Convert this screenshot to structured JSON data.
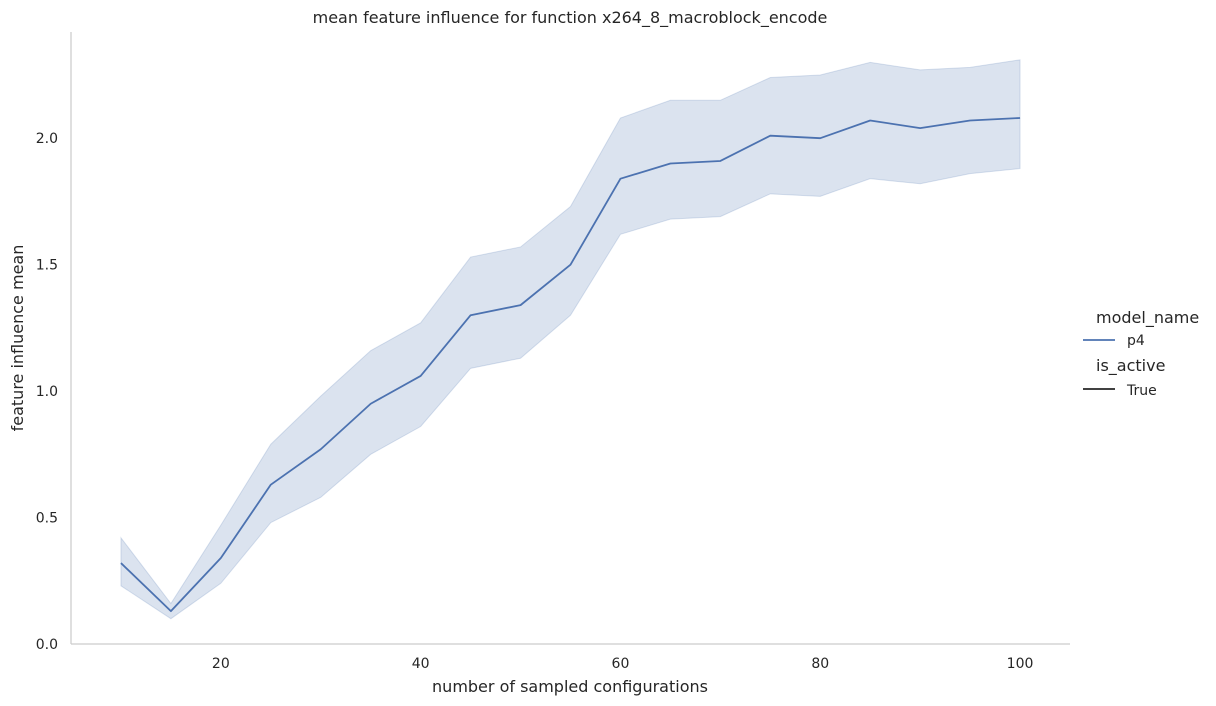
{
  "chart_data": {
    "type": "line",
    "title": "mean feature influence for function x264_8_macroblock_encode",
    "xlabel": "number of sampled configurations",
    "ylabel": "feature influence mean",
    "xlim": [
      5,
      105
    ],
    "ylim": [
      0,
      2.42
    ],
    "x_ticks": [
      20,
      40,
      60,
      80,
      100
    ],
    "y_ticks": [
      0.0,
      0.5,
      1.0,
      1.5,
      2.0
    ],
    "x_tick_labels": [
      "20",
      "40",
      "60",
      "80",
      "100"
    ],
    "y_tick_labels": [
      "0.0",
      "0.5",
      "1.0",
      "1.5",
      "2.0"
    ],
    "x": [
      10,
      15,
      20,
      25,
      30,
      35,
      40,
      45,
      50,
      55,
      60,
      65,
      70,
      75,
      80,
      85,
      90,
      95,
      100
    ],
    "series": [
      {
        "name": "p4",
        "color": "#4c72b0",
        "band_color": "#4c72b0",
        "values": [
          0.32,
          0.13,
          0.34,
          0.63,
          0.77,
          0.95,
          1.06,
          1.3,
          1.34,
          1.5,
          1.84,
          1.9,
          1.91,
          2.01,
          2.0,
          2.07,
          2.04,
          2.07,
          2.08
        ],
        "ci_upper": [
          0.42,
          0.16,
          0.47,
          0.79,
          0.98,
          1.16,
          1.27,
          1.53,
          1.57,
          1.73,
          2.08,
          2.15,
          2.15,
          2.24,
          2.25,
          2.3,
          2.27,
          2.28,
          2.31
        ],
        "ci_lower": [
          0.23,
          0.1,
          0.24,
          0.48,
          0.58,
          0.75,
          0.86,
          1.09,
          1.13,
          1.3,
          1.62,
          1.68,
          1.69,
          1.78,
          1.77,
          1.84,
          1.82,
          1.86,
          1.88
        ]
      }
    ],
    "legend": {
      "placement": "right",
      "title_1": "model_name",
      "entry_1": "p4",
      "title_2": "is_active",
      "entry_2": "True",
      "entry_2_color": "#262626"
    },
    "grid": false
  }
}
